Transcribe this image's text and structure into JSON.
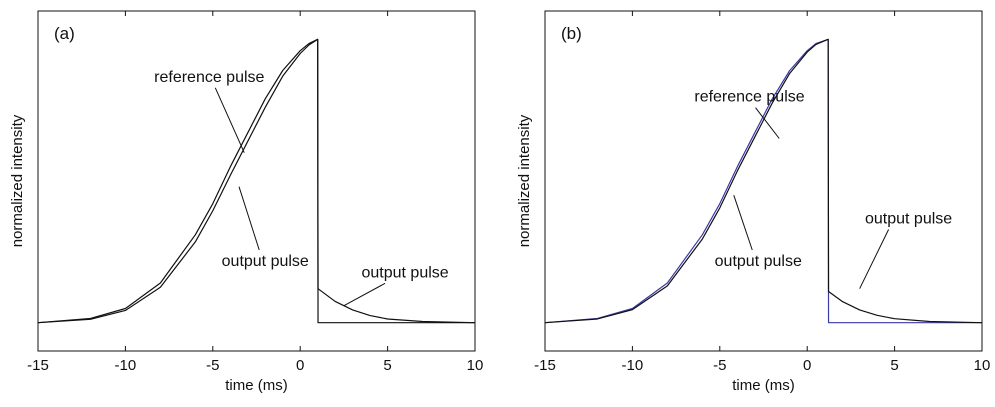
{
  "chart_data": [
    {
      "type": "line",
      "panel_label": "(a)",
      "xlabel": "time (ms)",
      "ylabel": "normalized intensity",
      "xlim": [
        -15,
        10
      ],
      "ylim": [
        -0.1,
        1.1
      ],
      "xticks": [
        -15,
        -10,
        -5,
        0,
        5,
        10
      ],
      "xtick_labels": [
        "-15",
        "-10",
        "-5",
        "0",
        "5",
        "10"
      ],
      "grid": false,
      "series": [
        {
          "name": "reference pulse",
          "color": "#111111",
          "x": [
            -15,
            -12,
            -10,
            -8,
            -6,
            -5,
            -4,
            -3,
            -2,
            -1,
            0,
            0.5,
            1.0,
            1.02,
            15
          ],
          "y": [
            0.0,
            0.015,
            0.05,
            0.14,
            0.31,
            0.42,
            0.55,
            0.67,
            0.79,
            0.89,
            0.96,
            0.985,
            1.0,
            0.0,
            0.0
          ]
        },
        {
          "name": "output pulse",
          "color": "#111111",
          "x": [
            -15,
            -12,
            -10,
            -8,
            -6,
            -5,
            -4,
            -3,
            -2,
            -1,
            0,
            0.5,
            1.0,
            1.02,
            2,
            3,
            4,
            5,
            7,
            10
          ],
          "y": [
            0.0,
            0.012,
            0.043,
            0.125,
            0.285,
            0.395,
            0.52,
            0.64,
            0.76,
            0.87,
            0.95,
            0.98,
            1.0,
            0.12,
            0.075,
            0.045,
            0.025,
            0.013,
            0.004,
            0.0
          ]
        }
      ],
      "annotations": [
        {
          "text": "reference pulse",
          "x": -5.2,
          "y": 0.85,
          "target": [
            -3.2,
            0.6
          ]
        },
        {
          "text": "output pulse",
          "x": -2.0,
          "y": 0.2,
          "target": [
            -3.5,
            0.48
          ]
        },
        {
          "text": "output pulse",
          "x": 6.0,
          "y": 0.16,
          "target": [
            2.5,
            0.06
          ]
        }
      ]
    },
    {
      "type": "line",
      "panel_label": "(b)",
      "xlabel": "time (ms)",
      "ylabel": "normalized intensity",
      "xlim": [
        -15,
        10
      ],
      "ylim": [
        -0.1,
        1.1
      ],
      "xticks": [
        -15,
        -10,
        -5,
        0,
        5,
        10
      ],
      "xtick_labels": [
        "-15",
        "-10",
        "-5",
        "0",
        "5",
        "10"
      ],
      "grid": false,
      "series": [
        {
          "name": "reference pulse",
          "color": "#3a3aa8",
          "x": [
            -15,
            -12,
            -10,
            -8,
            -6,
            -5,
            -4,
            -3,
            -2,
            -1,
            0,
            0.5,
            1.2,
            1.22,
            10
          ],
          "y": [
            0.0,
            0.015,
            0.05,
            0.14,
            0.31,
            0.42,
            0.55,
            0.67,
            0.79,
            0.89,
            0.96,
            0.985,
            1.0,
            0.0,
            0.0
          ]
        },
        {
          "name": "output pulse",
          "color": "#111111",
          "x": [
            -15,
            -12,
            -10,
            -8,
            -6,
            -5,
            -4,
            -3,
            -2,
            -1,
            0,
            0.5,
            1.2,
            1.22,
            2,
            3,
            4,
            5,
            7,
            10
          ],
          "y": [
            0.0,
            0.013,
            0.046,
            0.13,
            0.295,
            0.405,
            0.535,
            0.655,
            0.775,
            0.88,
            0.955,
            0.982,
            1.0,
            0.11,
            0.075,
            0.045,
            0.026,
            0.014,
            0.004,
            0.0
          ]
        }
      ],
      "annotations": [
        {
          "text": "reference pulse",
          "x": -3.3,
          "y": 0.78,
          "target": [
            -1.6,
            0.65
          ]
        },
        {
          "text": "output pulse",
          "x": -2.8,
          "y": 0.2,
          "target": [
            -4.2,
            0.45
          ]
        },
        {
          "text": "output pulse",
          "x": 5.8,
          "y": 0.35,
          "target": [
            3.0,
            0.12
          ]
        }
      ]
    }
  ]
}
